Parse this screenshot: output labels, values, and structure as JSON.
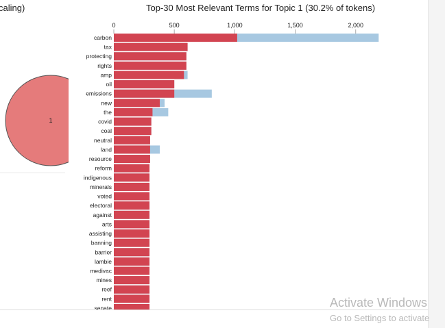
{
  "scaling_label": "caling)",
  "bubble": {
    "label": "1"
  },
  "watermark": {
    "line1": "Activate Windows",
    "line2": "Go to Settings to activate"
  },
  "colors": {
    "topic_bar": "#d24451",
    "overall_bar": "#a7c8e1",
    "bubble_fill": "#e57b7b",
    "bubble_stroke": "#555555"
  },
  "chart_data": {
    "type": "bar",
    "orientation": "horizontal",
    "title": "Top-30 Most Relevant Terms for Topic 1 (30.2% of tokens)",
    "xlim": [
      0,
      2200
    ],
    "xticks": [
      {
        "value": 0,
        "label": "0"
      },
      {
        "value": 500,
        "label": "500"
      },
      {
        "value": 1000,
        "label": "1,000"
      },
      {
        "value": 1500,
        "label": "1,500"
      },
      {
        "value": 2000,
        "label": "2,000"
      }
    ],
    "categories": [
      "carbon",
      "tax",
      "protecting",
      "rights",
      "amp",
      "oil",
      "emissions",
      "new",
      "the",
      "covid",
      "coal",
      "neutral",
      "land",
      "resource",
      "reform",
      "indigenous",
      "minerals",
      "voted",
      "electoral",
      "against",
      "arts",
      "assisting",
      "banning",
      "barrier",
      "lambie",
      "medivac",
      "mines",
      "reef",
      "rent",
      "senate"
    ],
    "series": [
      {
        "key": "overall",
        "values": [
          2190,
          610,
          600,
          600,
          610,
          500,
          810,
          420,
          450,
          310,
          310,
          300,
          380,
          300,
          295,
          295,
          295,
          295,
          295,
          295,
          295,
          295,
          295,
          295,
          295,
          295,
          295,
          295,
          295,
          295
        ]
      },
      {
        "key": "topic",
        "values": [
          1020,
          610,
          600,
          600,
          580,
          500,
          500,
          380,
          320,
          310,
          310,
          300,
          300,
          300,
          295,
          295,
          295,
          295,
          295,
          295,
          295,
          295,
          295,
          295,
          295,
          295,
          295,
          295,
          295,
          295
        ]
      }
    ]
  }
}
